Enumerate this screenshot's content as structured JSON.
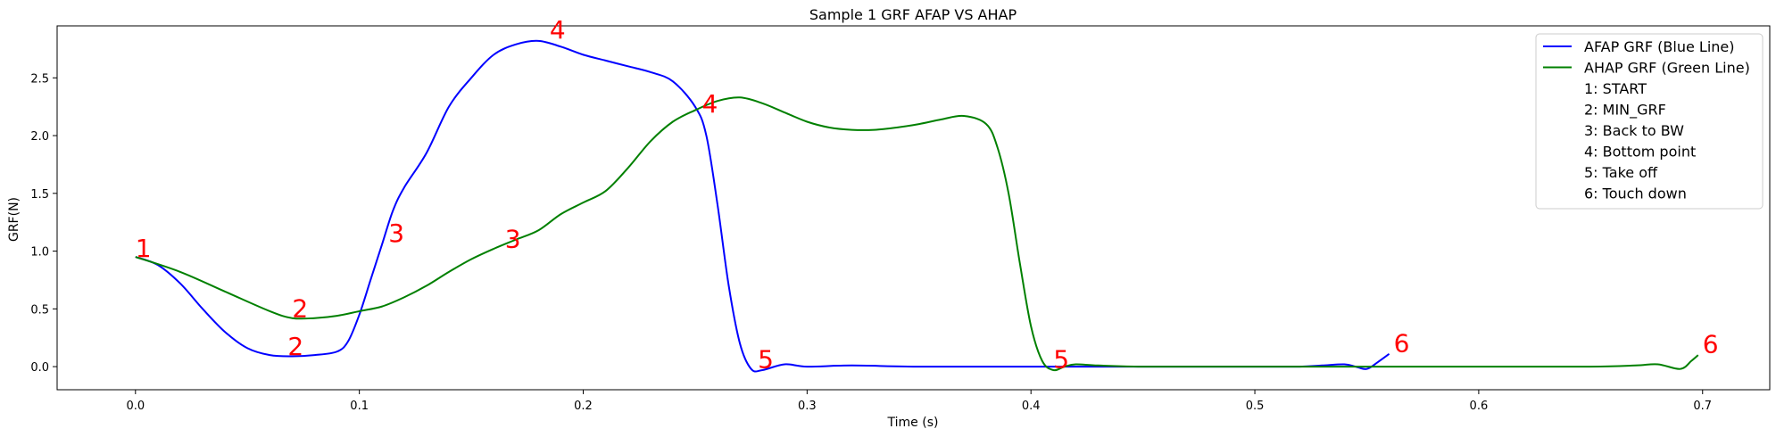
{
  "chart_data": {
    "type": "line",
    "title": "Sample 1 GRF AFAP VS AHAP",
    "xlabel": "Time (s)",
    "ylabel": "GRF(N)",
    "xlim": [
      -0.035,
      0.73
    ],
    "ylim": [
      -0.2,
      2.95
    ],
    "xticks": [
      0.0,
      0.1,
      0.2,
      0.3,
      0.4,
      0.5,
      0.6,
      0.7
    ],
    "xtick_labels": [
      "0.0",
      "0.1",
      "0.2",
      "0.3",
      "0.4",
      "0.5",
      "0.6",
      "0.7"
    ],
    "yticks": [
      0.0,
      0.5,
      1.0,
      1.5,
      2.0,
      2.5
    ],
    "ytick_labels": [
      "0.0",
      "0.5",
      "1.0",
      "1.5",
      "2.0",
      "2.5"
    ],
    "grid": false,
    "legend_position": "top-right",
    "series": [
      {
        "name": "AFAP GRF (Blue Line)",
        "color": "#0000ff",
        "x": [
          0.0,
          0.01,
          0.02,
          0.03,
          0.04,
          0.05,
          0.06,
          0.07,
          0.08,
          0.09,
          0.095,
          0.1,
          0.105,
          0.11,
          0.115,
          0.12,
          0.13,
          0.14,
          0.15,
          0.16,
          0.17,
          0.18,
          0.19,
          0.2,
          0.21,
          0.22,
          0.23,
          0.24,
          0.25,
          0.255,
          0.26,
          0.265,
          0.27,
          0.275,
          0.28,
          0.29,
          0.3,
          0.32,
          0.35,
          0.4,
          0.45,
          0.5,
          0.52,
          0.53,
          0.54,
          0.545,
          0.55,
          0.555,
          0.56
        ],
        "y": [
          0.95,
          0.88,
          0.72,
          0.5,
          0.3,
          0.16,
          0.1,
          0.09,
          0.1,
          0.13,
          0.22,
          0.45,
          0.75,
          1.05,
          1.35,
          1.55,
          1.85,
          2.25,
          2.5,
          2.7,
          2.79,
          2.82,
          2.77,
          2.7,
          2.65,
          2.6,
          2.55,
          2.47,
          2.25,
          2.0,
          1.4,
          0.7,
          0.2,
          -0.02,
          -0.03,
          0.02,
          0.0,
          0.01,
          0.0,
          0.0,
          0.0,
          0.0,
          0.0,
          0.01,
          0.02,
          0.0,
          -0.02,
          0.04,
          0.11
        ]
      },
      {
        "name": "AHAP GRF (Green Line)",
        "color": "#008000",
        "x": [
          0.0,
          0.02,
          0.04,
          0.06,
          0.07,
          0.08,
          0.09,
          0.1,
          0.11,
          0.12,
          0.13,
          0.14,
          0.15,
          0.16,
          0.17,
          0.18,
          0.19,
          0.2,
          0.21,
          0.22,
          0.23,
          0.24,
          0.25,
          0.26,
          0.27,
          0.28,
          0.29,
          0.3,
          0.31,
          0.32,
          0.33,
          0.34,
          0.35,
          0.36,
          0.37,
          0.38,
          0.385,
          0.39,
          0.395,
          0.4,
          0.405,
          0.41,
          0.415,
          0.42,
          0.43,
          0.45,
          0.5,
          0.55,
          0.6,
          0.65,
          0.67,
          0.68,
          0.69,
          0.695,
          0.698
        ],
        "y": [
          0.95,
          0.82,
          0.65,
          0.48,
          0.42,
          0.42,
          0.44,
          0.48,
          0.52,
          0.6,
          0.7,
          0.82,
          0.93,
          1.02,
          1.1,
          1.18,
          1.32,
          1.42,
          1.52,
          1.72,
          1.95,
          2.12,
          2.22,
          2.3,
          2.33,
          2.28,
          2.2,
          2.12,
          2.07,
          2.05,
          2.05,
          2.07,
          2.1,
          2.14,
          2.17,
          2.1,
          1.9,
          1.5,
          0.9,
          0.35,
          0.05,
          -0.03,
          0.0,
          0.02,
          0.01,
          0.0,
          0.0,
          0.0,
          0.0,
          0.0,
          0.01,
          0.02,
          -0.02,
          0.05,
          0.1
        ]
      }
    ],
    "annotations": [
      {
        "text": "1",
        "x": 0.0,
        "y": 0.95
      },
      {
        "text": "2",
        "x": 0.07,
        "y": 0.43
      },
      {
        "text": "2",
        "x": 0.068,
        "y": 0.1
      },
      {
        "text": "3",
        "x": 0.113,
        "y": 1.08
      },
      {
        "text": "3",
        "x": 0.165,
        "y": 1.03
      },
      {
        "text": "4",
        "x": 0.185,
        "y": 2.84
      },
      {
        "text": "4",
        "x": 0.253,
        "y": 2.2
      },
      {
        "text": "5",
        "x": 0.278,
        "y": -0.01
      },
      {
        "text": "5",
        "x": 0.41,
        "y": -0.01
      },
      {
        "text": "6",
        "x": 0.562,
        "y": 0.13
      },
      {
        "text": "6",
        "x": 0.7,
        "y": 0.12
      }
    ],
    "legend_entries": [
      {
        "label": "AFAP GRF (Blue Line)",
        "color": "#0000ff",
        "line": true
      },
      {
        "label": "AHAP GRF (Green Line)",
        "color": "#008000",
        "line": true
      },
      {
        "label": "1: START",
        "color": "",
        "line": false
      },
      {
        "label": "2: MIN_GRF",
        "color": "",
        "line": false
      },
      {
        "label": "3: Back to BW",
        "color": "",
        "line": false
      },
      {
        "label": "4: Bottom point",
        "color": "",
        "line": false
      },
      {
        "label": "5: Take off",
        "color": "",
        "line": false
      },
      {
        "label": "6: Touch down",
        "color": "",
        "line": false
      }
    ],
    "annotation_color": "#ff0000"
  }
}
